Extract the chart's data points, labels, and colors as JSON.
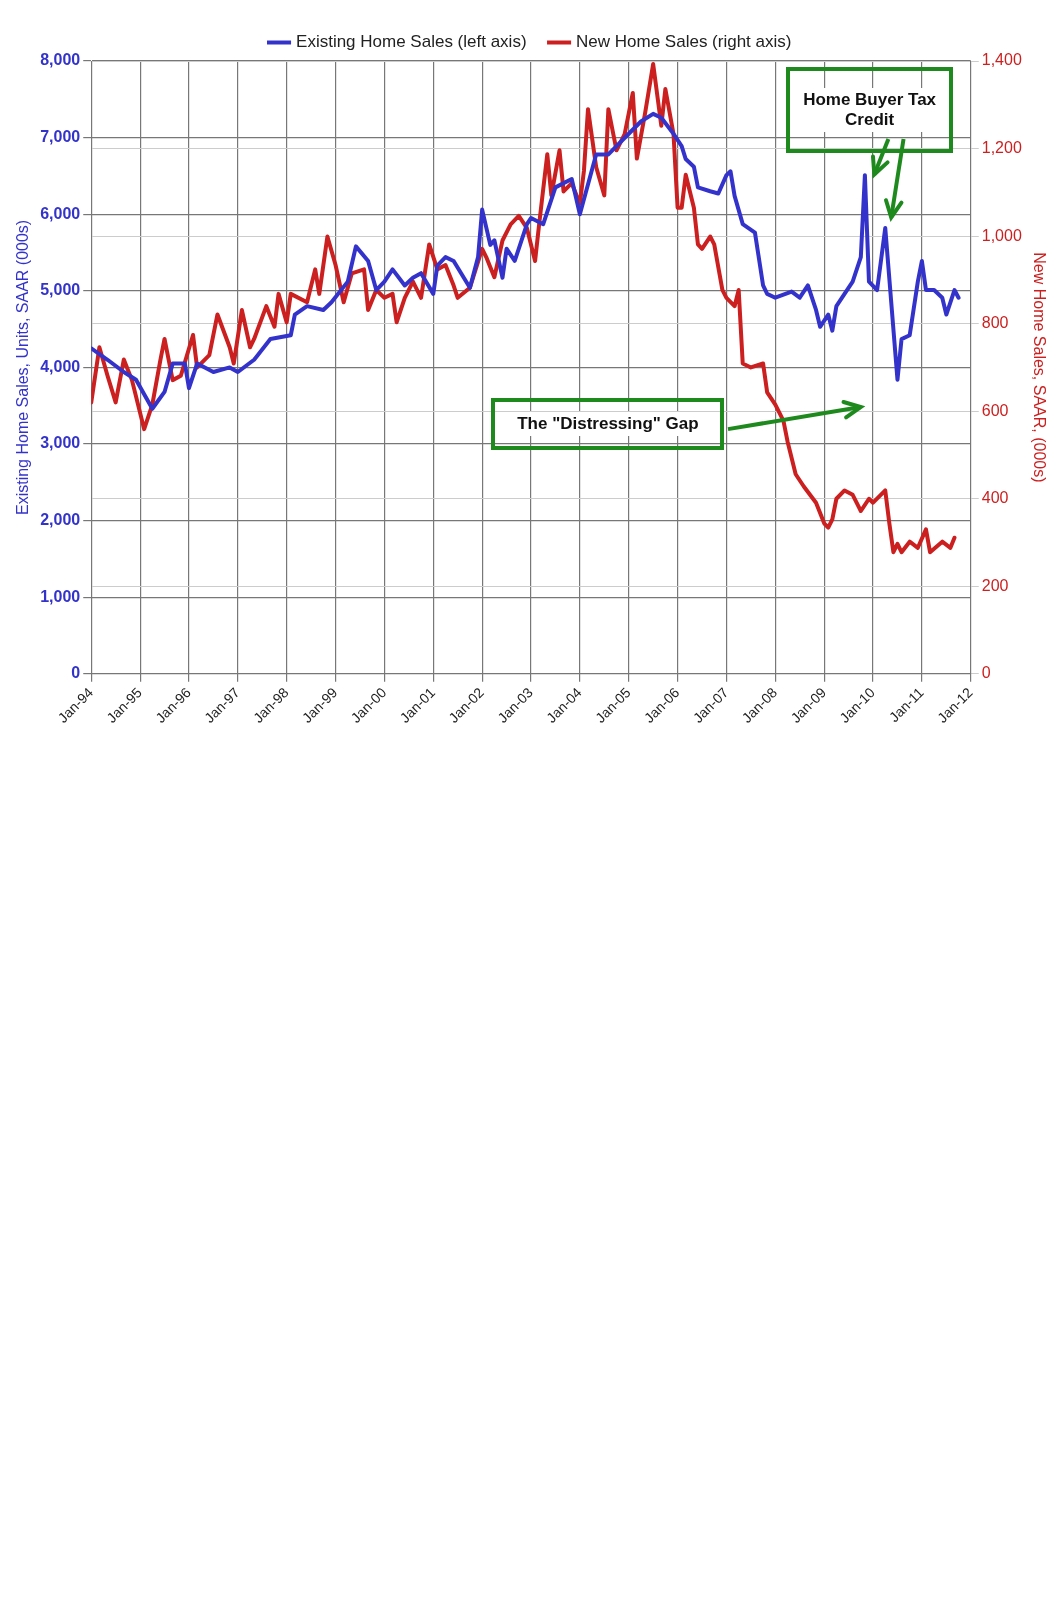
{
  "chart_data": {
    "type": "line",
    "ylabel": "Existing Home Sales, Units, SAAR (000s)",
    "y2label": "New Home Sales, SAAR, (000s)",
    "legend": "top",
    "grid": true,
    "marker": "none",
    "line_style": "solid",
    "xlim": [
      "1994-01",
      "2012-01"
    ],
    "xticks": [
      {
        "value": "1994-01",
        "label": "Jan-94"
      },
      {
        "value": "1995-01",
        "label": "Jan-95"
      },
      {
        "value": "1996-01",
        "label": "Jan-96"
      },
      {
        "value": "1997-01",
        "label": "Jan-97"
      },
      {
        "value": "1998-01",
        "label": "Jan-98"
      },
      {
        "value": "1999-01",
        "label": "Jan-99"
      },
      {
        "value": "2000-01",
        "label": "Jan-00"
      },
      {
        "value": "2001-01",
        "label": "Jan-01"
      },
      {
        "value": "2002-01",
        "label": "Jan-02"
      },
      {
        "value": "2003-01",
        "label": "Jan-03"
      },
      {
        "value": "2004-01",
        "label": "Jan-04"
      },
      {
        "value": "2005-01",
        "label": "Jan-05"
      },
      {
        "value": "2006-01",
        "label": "Jan-06"
      },
      {
        "value": "2007-01",
        "label": "Jan-07"
      },
      {
        "value": "2008-01",
        "label": "Jan-08"
      },
      {
        "value": "2009-01",
        "label": "Jan-09"
      },
      {
        "value": "2010-01",
        "label": "Jan-10"
      },
      {
        "value": "2011-01",
        "label": "Jan-11"
      },
      {
        "value": "2012-01",
        "label": "Jan-12"
      }
    ],
    "ylim": [
      0,
      8000
    ],
    "yticks": [
      0,
      {
        "value": 1000,
        "label": "1,000"
      },
      {
        "value": 2000,
        "label": "2,000"
      },
      {
        "value": 3000,
        "label": "3,000"
      },
      {
        "value": 4000,
        "label": "4,000"
      },
      {
        "value": 5000,
        "label": "5,000"
      },
      {
        "value": 6000,
        "label": "6,000"
      },
      {
        "value": 7000,
        "label": "7,000"
      },
      {
        "value": 8000,
        "label": "8,000"
      }
    ],
    "y2lim": [
      0,
      1400
    ],
    "y2ticks": [
      0,
      200,
      400,
      600,
      800,
      {
        "value": 1000,
        "label": "1,000"
      },
      {
        "value": 1200,
        "label": "1,200"
      },
      {
        "value": 1400,
        "label": "1,400"
      }
    ],
    "series": [
      {
        "name": "Existing Home Sales (left axis)",
        "color": "#3333cc",
        "axis": "y",
        "x": [
          "1994-01",
          "1994-05",
          "1994-09",
          "1994-12",
          "1995-04",
          "1995-07",
          "1995-09",
          "1995-12",
          "1996-01",
          "1996-03",
          "1996-07",
          "1996-11",
          "1997-01",
          "1997-05",
          "1997-09",
          "1998-02",
          "1998-03",
          "1998-06",
          "1998-10",
          "1998-12",
          "1999-04",
          "1999-06",
          "1999-09",
          "1999-11",
          "2000-01",
          "2000-03",
          "2000-06",
          "2000-08",
          "2000-10",
          "2001-01",
          "2001-02",
          "2001-04",
          "2001-06",
          "2001-10",
          "2001-12",
          "2002-01",
          "2002-03",
          "2002-04",
          "2002-06",
          "2002-07",
          "2002-09",
          "2002-12",
          "2003-01",
          "2003-04",
          "2003-07",
          "2003-11",
          "2004-01",
          "2004-05",
          "2004-08",
          "2004-10",
          "2005-01",
          "2005-04",
          "2005-07",
          "2005-09",
          "2005-12",
          "2006-02",
          "2006-03",
          "2006-05",
          "2006-06",
          "2006-09",
          "2006-11",
          "2007-01",
          "2007-02",
          "2007-03",
          "2007-05",
          "2007-08",
          "2007-10",
          "2007-11",
          "2008-01",
          "2008-05",
          "2008-07",
          "2008-09",
          "2008-11",
          "2008-12",
          "2009-02",
          "2009-03",
          "2009-04",
          "2009-06",
          "2009-08",
          "2009-10",
          "2009-11",
          "2009-12",
          "2010-02",
          "2010-04",
          "2010-07",
          "2010-08",
          "2010-10",
          "2010-12",
          "2011-01",
          "2011-02",
          "2011-04",
          "2011-06",
          "2011-07",
          "2011-09",
          "2011-10"
        ],
        "values": [
          4250,
          4100,
          3940,
          3840,
          3460,
          3680,
          4050,
          4050,
          3730,
          4050,
          3940,
          4000,
          3940,
          4100,
          4370,
          4420,
          4690,
          4800,
          4750,
          4850,
          5120,
          5580,
          5390,
          5010,
          5120,
          5280,
          5070,
          5170,
          5230,
          4960,
          5330,
          5440,
          5390,
          5040,
          5440,
          6060,
          5600,
          5660,
          5170,
          5550,
          5390,
          5870,
          5950,
          5870,
          6350,
          6460,
          6000,
          6780,
          6780,
          6890,
          7050,
          7210,
          7310,
          7260,
          7050,
          6890,
          6720,
          6620,
          6350,
          6300,
          6270,
          6510,
          6560,
          6240,
          5870,
          5760,
          5070,
          4960,
          4910,
          4990,
          4910,
          5070,
          4750,
          4530,
          4690,
          4480,
          4800,
          4960,
          5120,
          5440,
          6510,
          5120,
          5010,
          5820,
          3840,
          4370,
          4420,
          5120,
          5390,
          5010,
          5010,
          4910,
          4690,
          5010,
          4910
        ]
      },
      {
        "name": "New Home Sales (right axis)",
        "color": "#cc1f1f",
        "axis": "y2",
        "x": [
          "1994-01",
          "1994-03",
          "1994-05",
          "1994-07",
          "1994-09",
          "1994-11",
          "1995-02",
          "1995-04",
          "1995-06",
          "1995-07",
          "1995-09",
          "1995-11",
          "1996-02",
          "1996-03",
          "1996-06",
          "1996-08",
          "1996-11",
          "1996-12",
          "1997-02",
          "1997-04",
          "1997-05",
          "1997-08",
          "1997-10",
          "1997-11",
          "1998-01",
          "1998-02",
          "1998-06",
          "1998-08",
          "1998-09",
          "1998-11",
          "1999-01",
          "1999-03",
          "1999-05",
          "1999-08",
          "1999-09",
          "1999-11",
          "2000-01",
          "2000-03",
          "2000-04",
          "2000-06",
          "2000-08",
          "2000-10",
          "2000-12",
          "2001-02",
          "2001-04",
          "2001-06",
          "2001-07",
          "2001-10",
          "2002-01",
          "2002-02",
          "2002-04",
          "2002-06",
          "2002-08",
          "2002-10",
          "2002-12",
          "2003-02",
          "2003-03",
          "2003-05",
          "2003-06",
          "2003-08",
          "2003-09",
          "2003-11",
          "2004-01",
          "2004-02",
          "2004-03",
          "2004-05",
          "2004-07",
          "2004-08",
          "2004-10",
          "2004-12",
          "2005-02",
          "2005-03",
          "2005-05",
          "2005-07",
          "2005-09",
          "2005-10",
          "2005-12",
          "2006-01",
          "2006-02",
          "2006-03",
          "2006-05",
          "2006-06",
          "2006-07",
          "2006-09",
          "2006-10",
          "2006-12",
          "2007-01",
          "2007-03",
          "2007-04",
          "2007-05",
          "2007-07",
          "2007-10",
          "2007-11",
          "2008-01",
          "2008-03",
          "2008-04",
          "2008-06",
          "2008-08",
          "2008-11",
          "2009-01",
          "2009-02",
          "2009-03",
          "2009-04",
          "2009-06",
          "2009-08",
          "2009-10",
          "2009-12",
          "2010-01",
          "2010-04",
          "2010-05",
          "2010-06",
          "2010-07",
          "2010-08",
          "2010-10",
          "2010-12",
          "2011-02",
          "2011-03",
          "2011-06",
          "2011-08",
          "2011-09"
        ],
        "values": [
          620,
          746,
          681,
          620,
          718,
          671,
          559,
          615,
          718,
          765,
          671,
          681,
          774,
          700,
          728,
          821,
          746,
          709,
          831,
          746,
          765,
          840,
          793,
          868,
          803,
          868,
          849,
          924,
          868,
          999,
          934,
          849,
          915,
          924,
          831,
          877,
          859,
          868,
          803,
          859,
          896,
          859,
          981,
          924,
          934,
          887,
          859,
          882,
          971,
          952,
          906,
          990,
          1027,
          1046,
          1018,
          943,
          1027,
          1187,
          1093,
          1196,
          1102,
          1121,
          1074,
          1149,
          1290,
          1158,
          1093,
          1290,
          1196,
          1233,
          1327,
          1177,
          1280,
          1393,
          1252,
          1336,
          1233,
          1065,
          1065,
          1140,
          1065,
          981,
          971,
          999,
          981,
          877,
          859,
          840,
          877,
          709,
          700,
          709,
          643,
          615,
          578,
          531,
          456,
          428,
          391,
          344,
          334,
          353,
          400,
          419,
          409,
          372,
          400,
          391,
          419,
          344,
          278,
          297,
          278,
          302,
          288,
          330,
          278,
          302,
          288,
          311
        ]
      }
    ],
    "annotations": [
      "Home Buyer Tax Credit",
      "The \"Distressing\" Gap"
    ]
  }
}
